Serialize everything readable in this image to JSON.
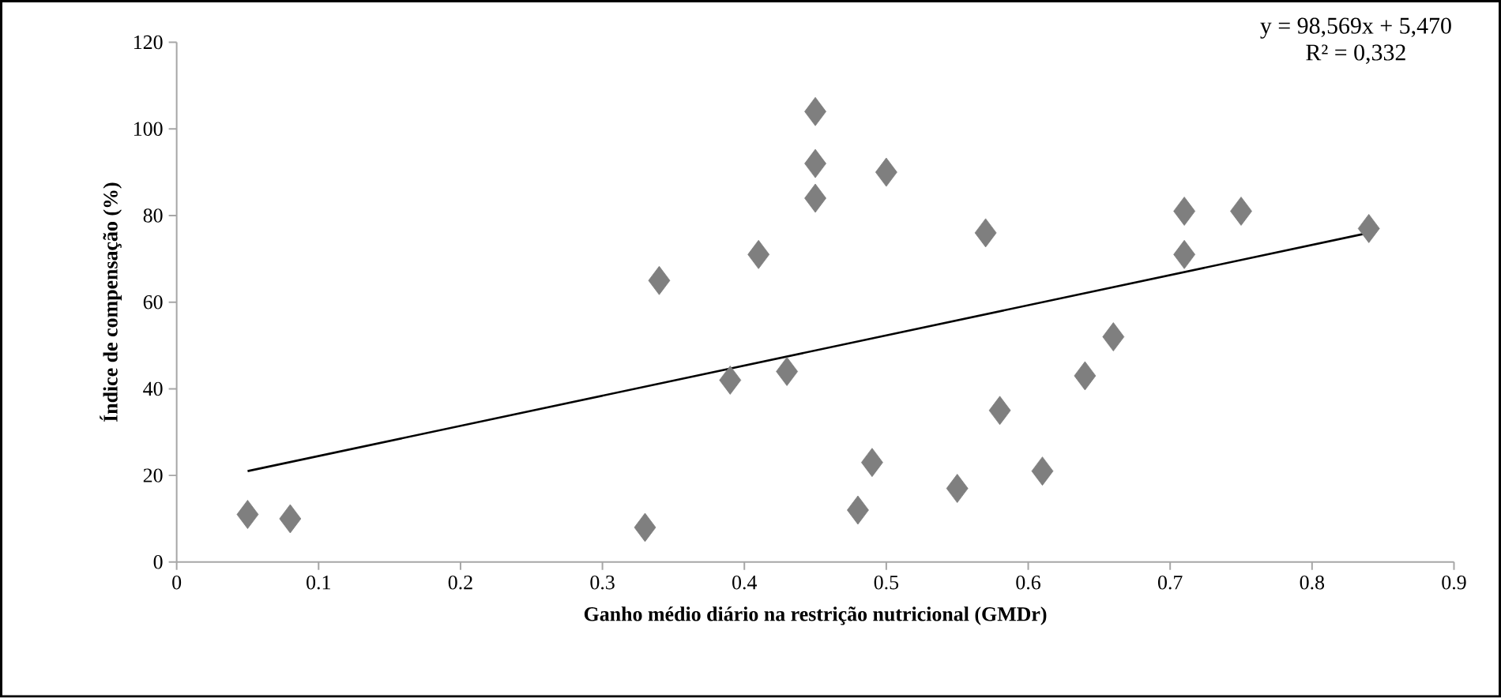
{
  "chart_data": {
    "type": "scatter",
    "xlabel": "Ganho médio diário na restrição nutricional (GMDr)",
    "ylabel": "Índice de compensação (%)",
    "xlim": [
      0,
      0.9
    ],
    "xticks": [
      0,
      0.1,
      0.2,
      0.3,
      0.4,
      0.5,
      0.6,
      0.7,
      0.8,
      0.9
    ],
    "ylim": [
      0,
      120
    ],
    "yticks": [
      0,
      20,
      40,
      60,
      80,
      100,
      120
    ],
    "grid": false,
    "series": [
      {
        "marker": "diamond",
        "color": "#7f7f7f",
        "x": [
          0.05,
          0.08,
          0.33,
          0.34,
          0.39,
          0.41,
          0.43,
          0.45,
          0.45,
          0.45,
          0.48,
          0.49,
          0.5,
          0.55,
          0.57,
          0.58,
          0.61,
          0.64,
          0.66,
          0.71,
          0.71,
          0.75,
          0.84
        ],
        "values": [
          11,
          10,
          8,
          65,
          42,
          71,
          44,
          104,
          92,
          84,
          12,
          23,
          90,
          17,
          76,
          35,
          21,
          43,
          52,
          81,
          71,
          81,
          77
        ]
      },
      {
        "type": "line",
        "marker": "none",
        "color": "#000000",
        "x": [
          0.05,
          0.84
        ],
        "values": [
          21,
          76
        ]
      }
    ],
    "annotations": [
      "y = 98,569x + 5,470",
      "R² = 0,332"
    ]
  }
}
